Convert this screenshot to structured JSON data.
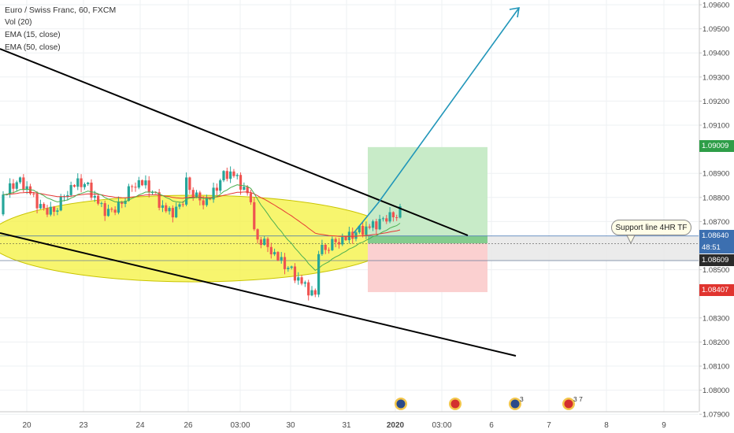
{
  "legend": {
    "title": "Euro / Swiss Franc, 60, FXCM",
    "vol": "Vol (20)",
    "ema15": "EMA (15, close)",
    "ema50": "EMA (50, close)"
  },
  "price_tags": {
    "target": "1.09009",
    "current": "1.08640",
    "countdown": "48:51",
    "entry": "1.08609",
    "stop": "1.08407"
  },
  "annotation": "Support line 4HR TF",
  "colors": {
    "up": "#26a69a",
    "down": "#ef5350",
    "ema15": "#4caf50",
    "ema50": "#e53935",
    "trend": "#000000",
    "arrow": "#2196b9",
    "ellipse": "#f5f24a",
    "target_zone": "#c8ebc8",
    "stop_zone": "#fbd0d0",
    "target_tag": "#2e9e48",
    "stop_tag": "#e0342f",
    "current_tag": "#3c6fb0"
  },
  "chart_data": {
    "type": "candlestick",
    "title": "Euro / Swiss Franc, 60, FXCM",
    "y_ticks": [
      "1.09600",
      "1.09500",
      "1.09400",
      "1.09300",
      "1.09200",
      "1.09100",
      "1.09009",
      "1.08900",
      "1.08800",
      "1.08700",
      "1.08640",
      "1.08609",
      "1.08500",
      "1.08407",
      "1.08300",
      "1.08200",
      "1.08100",
      "1.08000",
      "1.07900"
    ],
    "ylim": [
      1.0789,
      1.0966
    ],
    "x_ticks": [
      "20",
      "23",
      "24",
      "26",
      "03:00",
      "30",
      "31",
      "2020",
      "03:00",
      "6",
      "7",
      "8",
      "9"
    ],
    "indicators": [
      "EMA (15, close)",
      "EMA (50, close)",
      "Vol (20)"
    ],
    "long_position": {
      "entry": 1.08609,
      "target": 1.09009,
      "stop": 1.08407
    },
    "last_price": 1.0864,
    "event_badges": [
      "",
      "",
      "3",
      "3 7"
    ]
  }
}
